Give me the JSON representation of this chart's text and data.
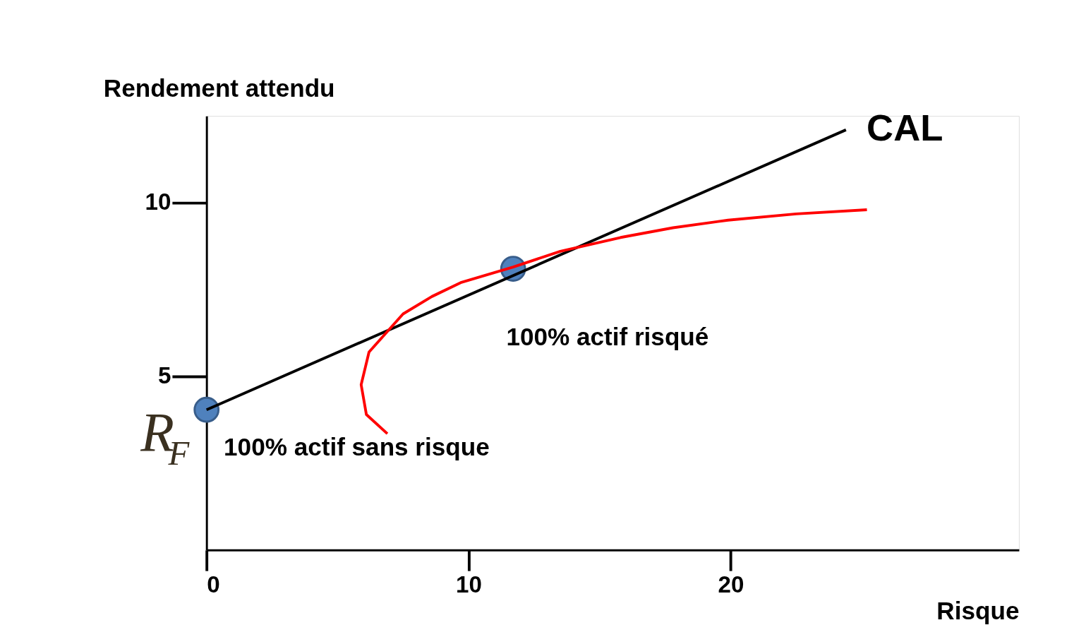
{
  "chart_data": {
    "type": "line",
    "xlabel": "Risque",
    "ylabel": "Rendement attendu",
    "xlim": [
      0,
      31
    ],
    "ylim": [
      0,
      12.5
    ],
    "xticks": [
      0,
      10,
      20
    ],
    "yticks": [
      5,
      10
    ],
    "grid": false,
    "series": [
      {
        "name": "CAL",
        "color": "#000000",
        "x": [
          0,
          24.4
        ],
        "values": [
          4.04,
          12.1
        ]
      },
      {
        "color": "#ff0000",
        "x": [
          6.9,
          6.1,
          5.9,
          6.2,
          7.5,
          8.6,
          9.7,
          11.7,
          13.5,
          15.8,
          17.8,
          19.9,
          22.5,
          25.2
        ],
        "values": [
          3.35,
          3.9,
          4.76,
          5.7,
          6.8,
          7.3,
          7.7,
          8.15,
          8.6,
          9.0,
          9.28,
          9.5,
          9.68,
          9.8
        ]
      },
      {
        "type": "scatter",
        "marker": "circle",
        "color": "#4f81bd",
        "x": [
          0,
          11.7
        ],
        "values": [
          4.04,
          8.1
        ]
      }
    ],
    "annotations": [
      "100% actif sans risque",
      {
        "text": "100% actif risqué",
        "x": 11.7,
        "y": 8.1
      },
      "R$_{F}$"
    ]
  }
}
